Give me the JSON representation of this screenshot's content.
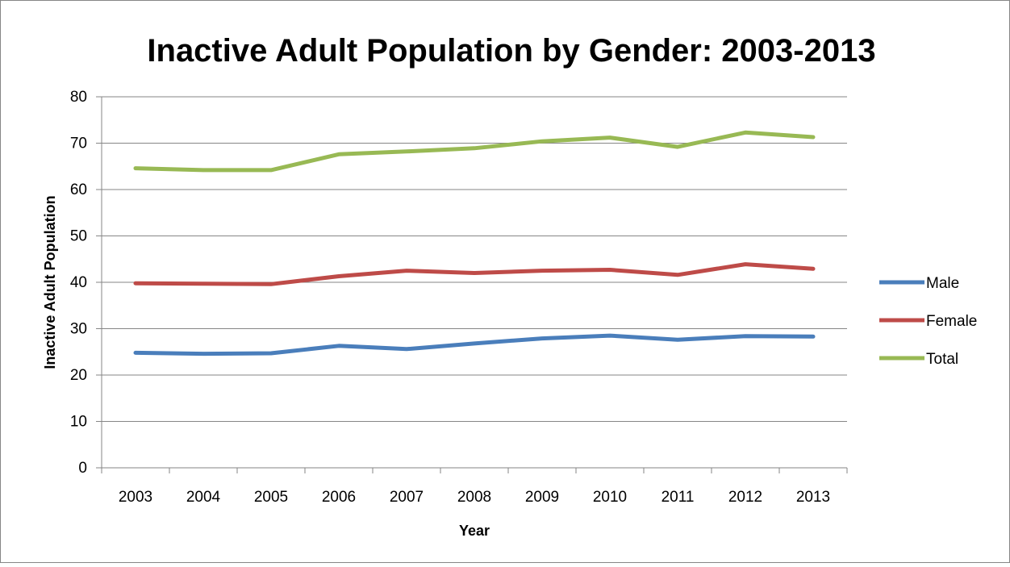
{
  "chart_data": {
    "type": "line",
    "title": "Inactive Adult Population by Gender: 2003-2013",
    "xlabel": "Year",
    "ylabel": "Inactive Adult Population",
    "categories": [
      "2003",
      "2004",
      "2005",
      "2006",
      "2007",
      "2008",
      "2009",
      "2010",
      "2011",
      "2012",
      "2013"
    ],
    "series": [
      {
        "name": "Male",
        "color": "#4a7ebb",
        "values": [
          24.8,
          24.6,
          24.7,
          26.3,
          25.6,
          26.8,
          27.9,
          28.5,
          27.6,
          28.4,
          28.3
        ]
      },
      {
        "name": "Female",
        "color": "#be4b48",
        "values": [
          39.8,
          39.7,
          39.6,
          41.3,
          42.5,
          42.0,
          42.5,
          42.7,
          41.6,
          43.9,
          42.9
        ]
      },
      {
        "name": "Total",
        "color": "#98b954",
        "values": [
          64.6,
          64.2,
          64.2,
          67.6,
          68.2,
          68.9,
          70.4,
          71.2,
          69.2,
          72.3,
          71.3
        ]
      }
    ],
    "ylim": [
      0,
      80
    ],
    "yticks": [
      0,
      10,
      20,
      30,
      40,
      50,
      60,
      70,
      80
    ],
    "grid": true,
    "legend_position": "right"
  }
}
